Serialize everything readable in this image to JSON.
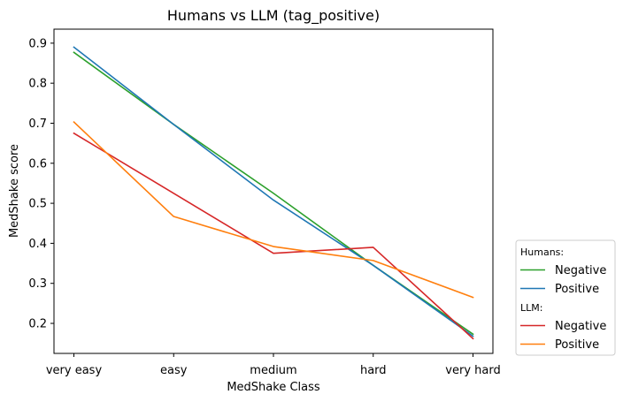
{
  "chart_data": {
    "type": "line",
    "title": "Humans vs LLM (tag_positive)",
    "xlabel": "MedShake Class",
    "ylabel": "MedShake score",
    "categories": [
      "very easy",
      "easy",
      "medium",
      "hard",
      "very hard"
    ],
    "ylim": [
      0.125,
      0.935
    ],
    "yticks": [
      0.2,
      0.3,
      0.4,
      0.5,
      0.6,
      0.7,
      0.8,
      0.9
    ],
    "ytick_labels": [
      "0.2",
      "0.3",
      "0.4",
      "0.5",
      "0.6",
      "0.7",
      "0.8",
      "0.9"
    ],
    "grid": false,
    "legend_position": "outside-bottom-right",
    "series": [
      {
        "group": "Humans",
        "name": "Negative",
        "color": "#2ca02c",
        "values": [
          0.877,
          0.697,
          0.525,
          0.345,
          0.173
        ]
      },
      {
        "group": "Humans",
        "name": "Positive",
        "color": "#1f77b4",
        "values": [
          0.89,
          0.697,
          0.508,
          0.345,
          0.168
        ]
      },
      {
        "group": "LLM",
        "name": "Negative",
        "color": "#d62728",
        "values": [
          0.675,
          0.525,
          0.375,
          0.39,
          0.162
        ]
      },
      {
        "group": "LLM",
        "name": "Positive",
        "color": "#ff7f0e",
        "values": [
          0.703,
          0.467,
          0.392,
          0.357,
          0.265
        ]
      }
    ],
    "legend": {
      "groups": [
        {
          "title": "Humans:",
          "entries": [
            {
              "label": "Negative",
              "color": "#2ca02c"
            },
            {
              "label": "Positive",
              "color": "#1f77b4"
            }
          ]
        },
        {
          "title": "LLM:",
          "entries": [
            {
              "label": "Negative",
              "color": "#d62728"
            },
            {
              "label": "Positive",
              "color": "#ff7f0e"
            }
          ]
        }
      ]
    }
  }
}
